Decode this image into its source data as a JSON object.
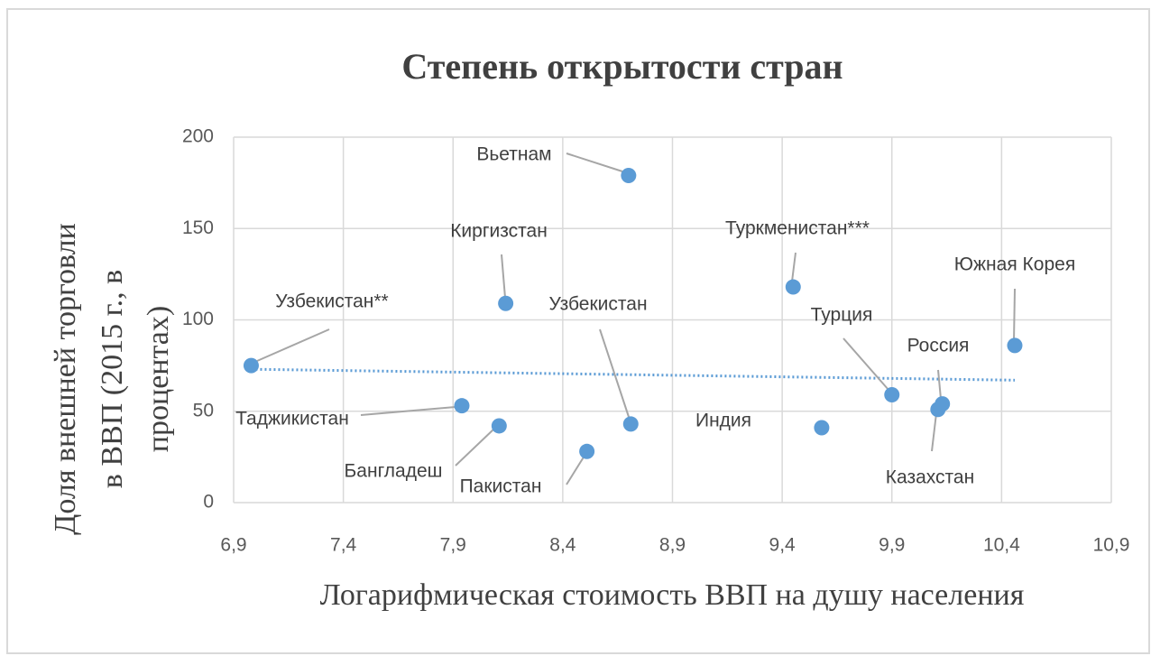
{
  "chart_data": {
    "type": "scatter",
    "title": "Степень открытости стран",
    "x_label": "Логарифмическая стоимость ВВП на душу населения",
    "y_label": [
      "Доля внешней торговли",
      "в ВВП (2015 г., в",
      "процентах)"
    ],
    "point_labels": [
      "Узбекистан**",
      "Таджикистан",
      "Бангладеш",
      "Киргизстан",
      "Пакистан",
      "Вьетнам",
      "Узбекистан",
      "Туркменистан***",
      "Индия",
      "Турция",
      "Казахстан",
      "Россия",
      "Южная Корея"
    ],
    "x": [
      6.98,
      7.94,
      8.11,
      8.14,
      8.51,
      8.7,
      8.71,
      9.45,
      9.58,
      9.9,
      10.11,
      10.13,
      10.46
    ],
    "values": [
      75,
      53,
      42,
      109,
      28,
      179,
      43,
      118,
      41,
      59,
      51,
      54,
      86
    ],
    "color": "#5b9bd5",
    "trendline": {
      "x": [
        6.98,
        10.46
      ],
      "values": [
        73,
        67
      ],
      "color": "#5b9bd5"
    },
    "xlim": [
      6.9,
      10.9
    ],
    "xticks": [
      {
        "value": 6.9,
        "label": "6,9"
      },
      {
        "value": 7.4,
        "label": "7,4"
      },
      {
        "value": 7.9,
        "label": "7,9"
      },
      {
        "value": 8.4,
        "label": "8,4"
      },
      {
        "value": 8.9,
        "label": "8,9"
      },
      {
        "value": 9.4,
        "label": "9,4"
      },
      {
        "value": 9.9,
        "label": "9,9"
      },
      {
        "value": 10.4,
        "label": "10,4"
      },
      {
        "value": 10.9,
        "label": "10,9"
      }
    ],
    "ylim": [
      0,
      200
    ],
    "yticks": [
      0,
      50,
      100,
      150,
      200
    ],
    "grid": true
  }
}
